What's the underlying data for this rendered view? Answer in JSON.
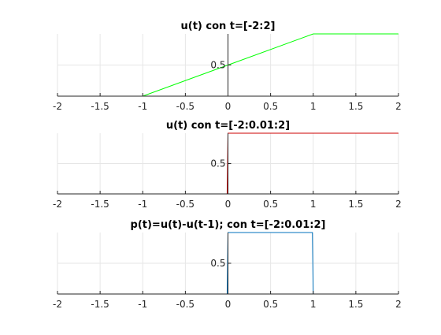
{
  "chart_data": [
    {
      "type": "line",
      "title": "u(t) con t=[-2:2]",
      "xlim": [
        -2,
        2
      ],
      "ylim": [
        0,
        1
      ],
      "grid": true,
      "xticks": [
        "-2",
        "-1.5",
        "-1",
        "-0.5",
        "0",
        "0.5",
        "1",
        "1.5",
        "2"
      ],
      "yticks": [
        "0.5"
      ],
      "series": [
        {
          "color": "#00ff00",
          "x": [
            -2,
            -1,
            0,
            1,
            2
          ],
          "y": [
            0,
            0,
            0.5,
            1,
            1
          ]
        }
      ]
    },
    {
      "type": "line",
      "title": "u(t) con t=[-2:0.01:2]",
      "xlim": [
        -2,
        2
      ],
      "ylim": [
        0,
        1
      ],
      "grid": true,
      "xticks": [
        "-2",
        "-1.5",
        "-1",
        "-0.5",
        "0",
        "0.5",
        "1",
        "1.5",
        "2"
      ],
      "yticks": [
        "0.5"
      ],
      "series": [
        {
          "color": "#cc0000",
          "x": [
            -2,
            -0.01,
            0,
            2
          ],
          "y": [
            0,
            0,
            1,
            1
          ]
        }
      ]
    },
    {
      "type": "line",
      "title": "p(t)=u(t)-u(t-1); con t=[-2:0.01:2]",
      "xlim": [
        -2,
        2
      ],
      "ylim": [
        0,
        1
      ],
      "grid": true,
      "xticks": [
        "-2",
        "-1.5",
        "-1",
        "-0.5",
        "0",
        "0.5",
        "1",
        "1.5",
        "2"
      ],
      "yticks": [
        "0.5"
      ],
      "series": [
        {
          "color": "#0072bd",
          "x": [
            -2,
            -0.01,
            0,
            0.99,
            1,
            2
          ],
          "y": [
            0,
            0,
            1,
            1,
            0,
            0
          ]
        }
      ]
    }
  ]
}
